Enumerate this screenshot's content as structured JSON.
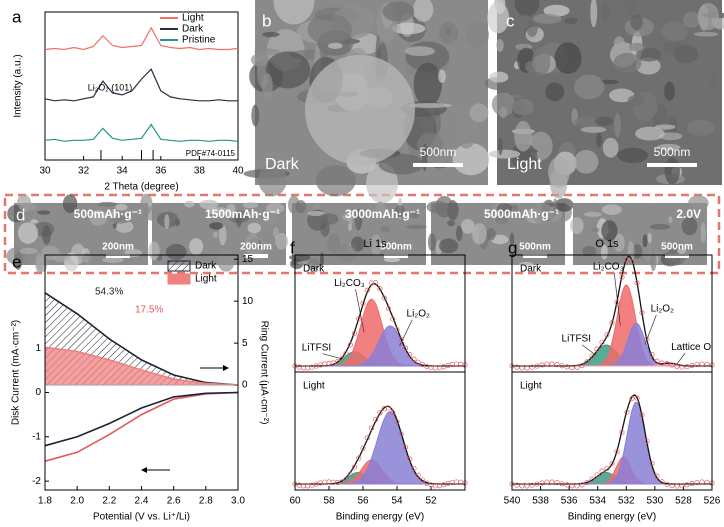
{
  "panel_labels": [
    "a",
    "b",
    "c",
    "d",
    "e",
    "f",
    "g"
  ],
  "images": {
    "b": {
      "label": "Dark",
      "scale_bar": "500nm"
    },
    "c": {
      "label": "Light",
      "scale_bar": "500nm"
    },
    "d": [
      {
        "label": "500mAh·g⁻¹",
        "scale_bar": "200nm"
      },
      {
        "label": "1500mAh·g⁻¹",
        "scale_bar": "200nm"
      },
      {
        "label": "3000mAh·g⁻¹",
        "scale_bar": "500nm"
      },
      {
        "label": "5000mAh·g⁻¹",
        "scale_bar": "500nm"
      },
      {
        "label": "2.0V",
        "scale_bar": "500nm"
      }
    ]
  },
  "chart_data": [
    {
      "type": "line",
      "xlabel": "2 Theta (degree)",
      "ylabel": "Intensity (a.u.)",
      "x": [
        30,
        30.5,
        31,
        31.5,
        32,
        32.5,
        33,
        33.5,
        34,
        34.5,
        35,
        35.5,
        36,
        36.5,
        37,
        37.5,
        38,
        38.5,
        39,
        39.5,
        40
      ],
      "series": [
        {
          "name": "Pristine",
          "color": "#1f9a8a",
          "values": [
            1.0,
            1.05,
            0.95,
            1.0,
            1.0,
            1.05,
            1.6,
            1.1,
            1.0,
            1.05,
            1.1,
            1.8,
            1.05,
            1.0,
            0.95,
            1.0,
            1.0,
            0.95,
            1.0,
            1.0,
            0.95
          ]
        },
        {
          "name": "Dark",
          "color": "#2b2d42",
          "values": [
            3.1,
            3.0,
            3.05,
            3.0,
            3.1,
            3.2,
            4.0,
            3.4,
            3.3,
            3.5,
            4.1,
            4.6,
            3.5,
            3.2,
            3.1,
            3.05,
            3.0,
            3.0,
            3.05,
            3.0,
            3.0
          ]
        },
        {
          "name": "Light",
          "color": "#f07068",
          "values": [
            5.6,
            5.65,
            5.6,
            5.7,
            5.6,
            5.75,
            6.3,
            5.8,
            5.7,
            5.75,
            5.8,
            6.7,
            5.8,
            5.7,
            5.65,
            5.7,
            5.6,
            5.65,
            5.6,
            5.6,
            5.65
          ]
        }
      ],
      "xlim": [
        30,
        40
      ],
      "xticks": [
        30,
        32,
        34,
        36,
        38,
        40
      ],
      "ylim": [
        0,
        7.5
      ],
      "annotation": "Li₂O₂ (101)",
      "reference": {
        "label": "PDF#74-0115",
        "positions": [
          32.9,
          35.0,
          35.6
        ]
      }
    },
    {
      "type": "line",
      "xlabel": "Potential (V vs. Li⁺/Li)",
      "ylabel": "Disk Current (mA·cm⁻²)",
      "y2label": "Ring Current (μA·cm⁻²)",
      "x": [
        1.8,
        2.0,
        2.2,
        2.4,
        2.6,
        2.8,
        3.0
      ],
      "series": [
        {
          "color": "#e05a5a",
          "values": [
            -1.55,
            -1.35,
            -0.95,
            -0.5,
            -0.15,
            -0.03,
            0
          ]
        },
        {
          "color": "#1e2235",
          "values": [
            -1.2,
            -1.0,
            -0.7,
            -0.35,
            -0.1,
            -0.02,
            0
          ]
        },
        {
          "name": "Dark",
          "color": "#1e2235",
          "axis": "y2",
          "fill": "hatch",
          "values": [
            11,
            8.5,
            5.5,
            3,
            1.2,
            0.3,
            0
          ]
        },
        {
          "name": "Light",
          "color": "#f08080",
          "axis": "y2",
          "fill": "solid",
          "values": [
            4.5,
            4,
            3,
            1.8,
            0.7,
            0.2,
            0
          ]
        }
      ],
      "xlim": [
        1.8,
        3.0
      ],
      "xticks": [
        1.8,
        {
          "value": 2,
          "label": "2.0"
        },
        2.2,
        2.4,
        2.6,
        2.8,
        {
          "value": 3,
          "label": "3.0"
        }
      ],
      "ylim": [
        -2.2,
        3.1
      ],
      "yticks": [
        -2,
        -1,
        0,
        1
      ],
      "y2lim": [
        -12.5,
        15.5
      ],
      "y2ticks": [
        0,
        5,
        10,
        15
      ],
      "legend": "upper right",
      "annotations": [
        {
          "text": "54.3%",
          "color": "#222222"
        },
        {
          "text": "17.5%",
          "color": "#e05a5a"
        }
      ]
    },
    {
      "type": "area",
      "title": "Li 1s",
      "xlabel": "Binding energy (eV)",
      "xlim": [
        60,
        50
      ],
      "xticks": [
        60,
        58,
        56,
        54,
        52
      ],
      "ylim": [
        0,
        1.1
      ],
      "panels": [
        {
          "label": "Dark",
          "components": [
            {
              "name": "LiTFSI",
              "color": "#3a9e86",
              "center": 56.5,
              "height": 0.15,
              "fwhm": 1.4
            },
            {
              "name": "Li₂CO₃",
              "color": "#f06a6a",
              "center": 55.5,
              "height": 0.7,
              "fwhm": 1.5
            },
            {
              "name": "Li₂O₂",
              "color": "#8a7fd6",
              "center": 54.4,
              "height": 0.42,
              "fwhm": 1.6
            }
          ]
        },
        {
          "label": "Light",
          "components": [
            {
              "color": "#3a9e86",
              "center": 56.3,
              "height": 0.12,
              "fwhm": 1.3
            },
            {
              "color": "#f06a6a",
              "center": 55.5,
              "height": 0.25,
              "fwhm": 1.4
            },
            {
              "color": "#8a7fd6",
              "center": 54.4,
              "height": 0.75,
              "fwhm": 1.8
            }
          ]
        }
      ]
    },
    {
      "type": "area",
      "title": "O 1s",
      "xlabel": "Binding energy (eV)",
      "xlim": [
        540,
        526
      ],
      "xticks": [
        540,
        538,
        536,
        534,
        532,
        530,
        528,
        526
      ],
      "ylim": [
        0,
        1.1
      ],
      "panels": [
        {
          "label": "Dark",
          "components": [
            {
              "name": "LiTFSI",
              "color": "#3a9e86",
              "center": 533.4,
              "height": 0.22,
              "fwhm": 1.8
            },
            {
              "name": "Li₂CO₃",
              "color": "#f06a6a",
              "center": 532.0,
              "height": 0.85,
              "fwhm": 1.5
            },
            {
              "name": "Li₂O₂",
              "color": "#8a7fd6",
              "center": 531.3,
              "height": 0.45,
              "fwhm": 1.4
            },
            {
              "name": "Lattice O",
              "color": "#f3a0c0",
              "center": 529.0,
              "height": 0.03,
              "fwhm": 1.2
            }
          ]
        },
        {
          "label": "Light",
          "components": [
            {
              "color": "#3a9e86",
              "center": 533.4,
              "height": 0.12,
              "fwhm": 1.6
            },
            {
              "color": "#f06a6a",
              "center": 532.2,
              "height": 0.28,
              "fwhm": 1.2
            },
            {
              "color": "#8a7fd6",
              "center": 531.3,
              "height": 0.85,
              "fwhm": 1.5
            }
          ]
        }
      ]
    }
  ]
}
